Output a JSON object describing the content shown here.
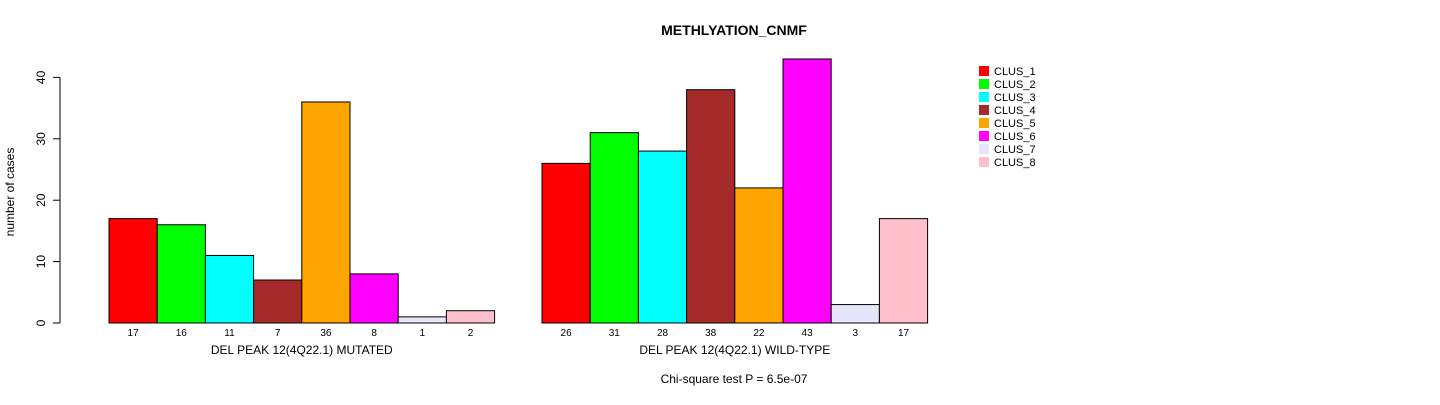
{
  "chart_data": {
    "type": "bar",
    "title": "METHLYATION_CNMF",
    "ylabel": "number of cases",
    "ylim": [
      0,
      40
    ],
    "yticks": [
      0,
      10,
      20,
      30,
      40
    ],
    "note": "Chi-square test P = 6.5e-07",
    "groups": [
      {
        "label": "DEL PEAK 12(4Q22.1) MUTATED",
        "values": [
          17,
          16,
          11,
          7,
          36,
          8,
          1,
          2
        ],
        "value_labels": [
          "17",
          "16",
          "11",
          "7",
          "36",
          "8",
          "1",
          "2"
        ]
      },
      {
        "label": "DEL PEAK 12(4Q22.1) WILD-TYPE",
        "values": [
          26,
          31,
          28,
          38,
          22,
          43,
          3,
          17
        ],
        "value_labels": [
          "26",
          "31",
          "28",
          "38",
          "22",
          "43",
          "3",
          "17"
        ]
      }
    ],
    "series": [
      {
        "name": "CLUS_1",
        "color": "#ff0000"
      },
      {
        "name": "CLUS_2",
        "color": "#00ff00"
      },
      {
        "name": "CLUS_3",
        "color": "#00ffff"
      },
      {
        "name": "CLUS_4",
        "color": "#a52a2a"
      },
      {
        "name": "CLUS_5",
        "color": "#ffa500"
      },
      {
        "name": "CLUS_6",
        "color": "#ff00ff"
      },
      {
        "name": "CLUS_7",
        "color": "#e6e6fa"
      },
      {
        "name": "CLUS_8",
        "color": "#ffc0cb"
      }
    ],
    "legend_position": "top-right"
  }
}
